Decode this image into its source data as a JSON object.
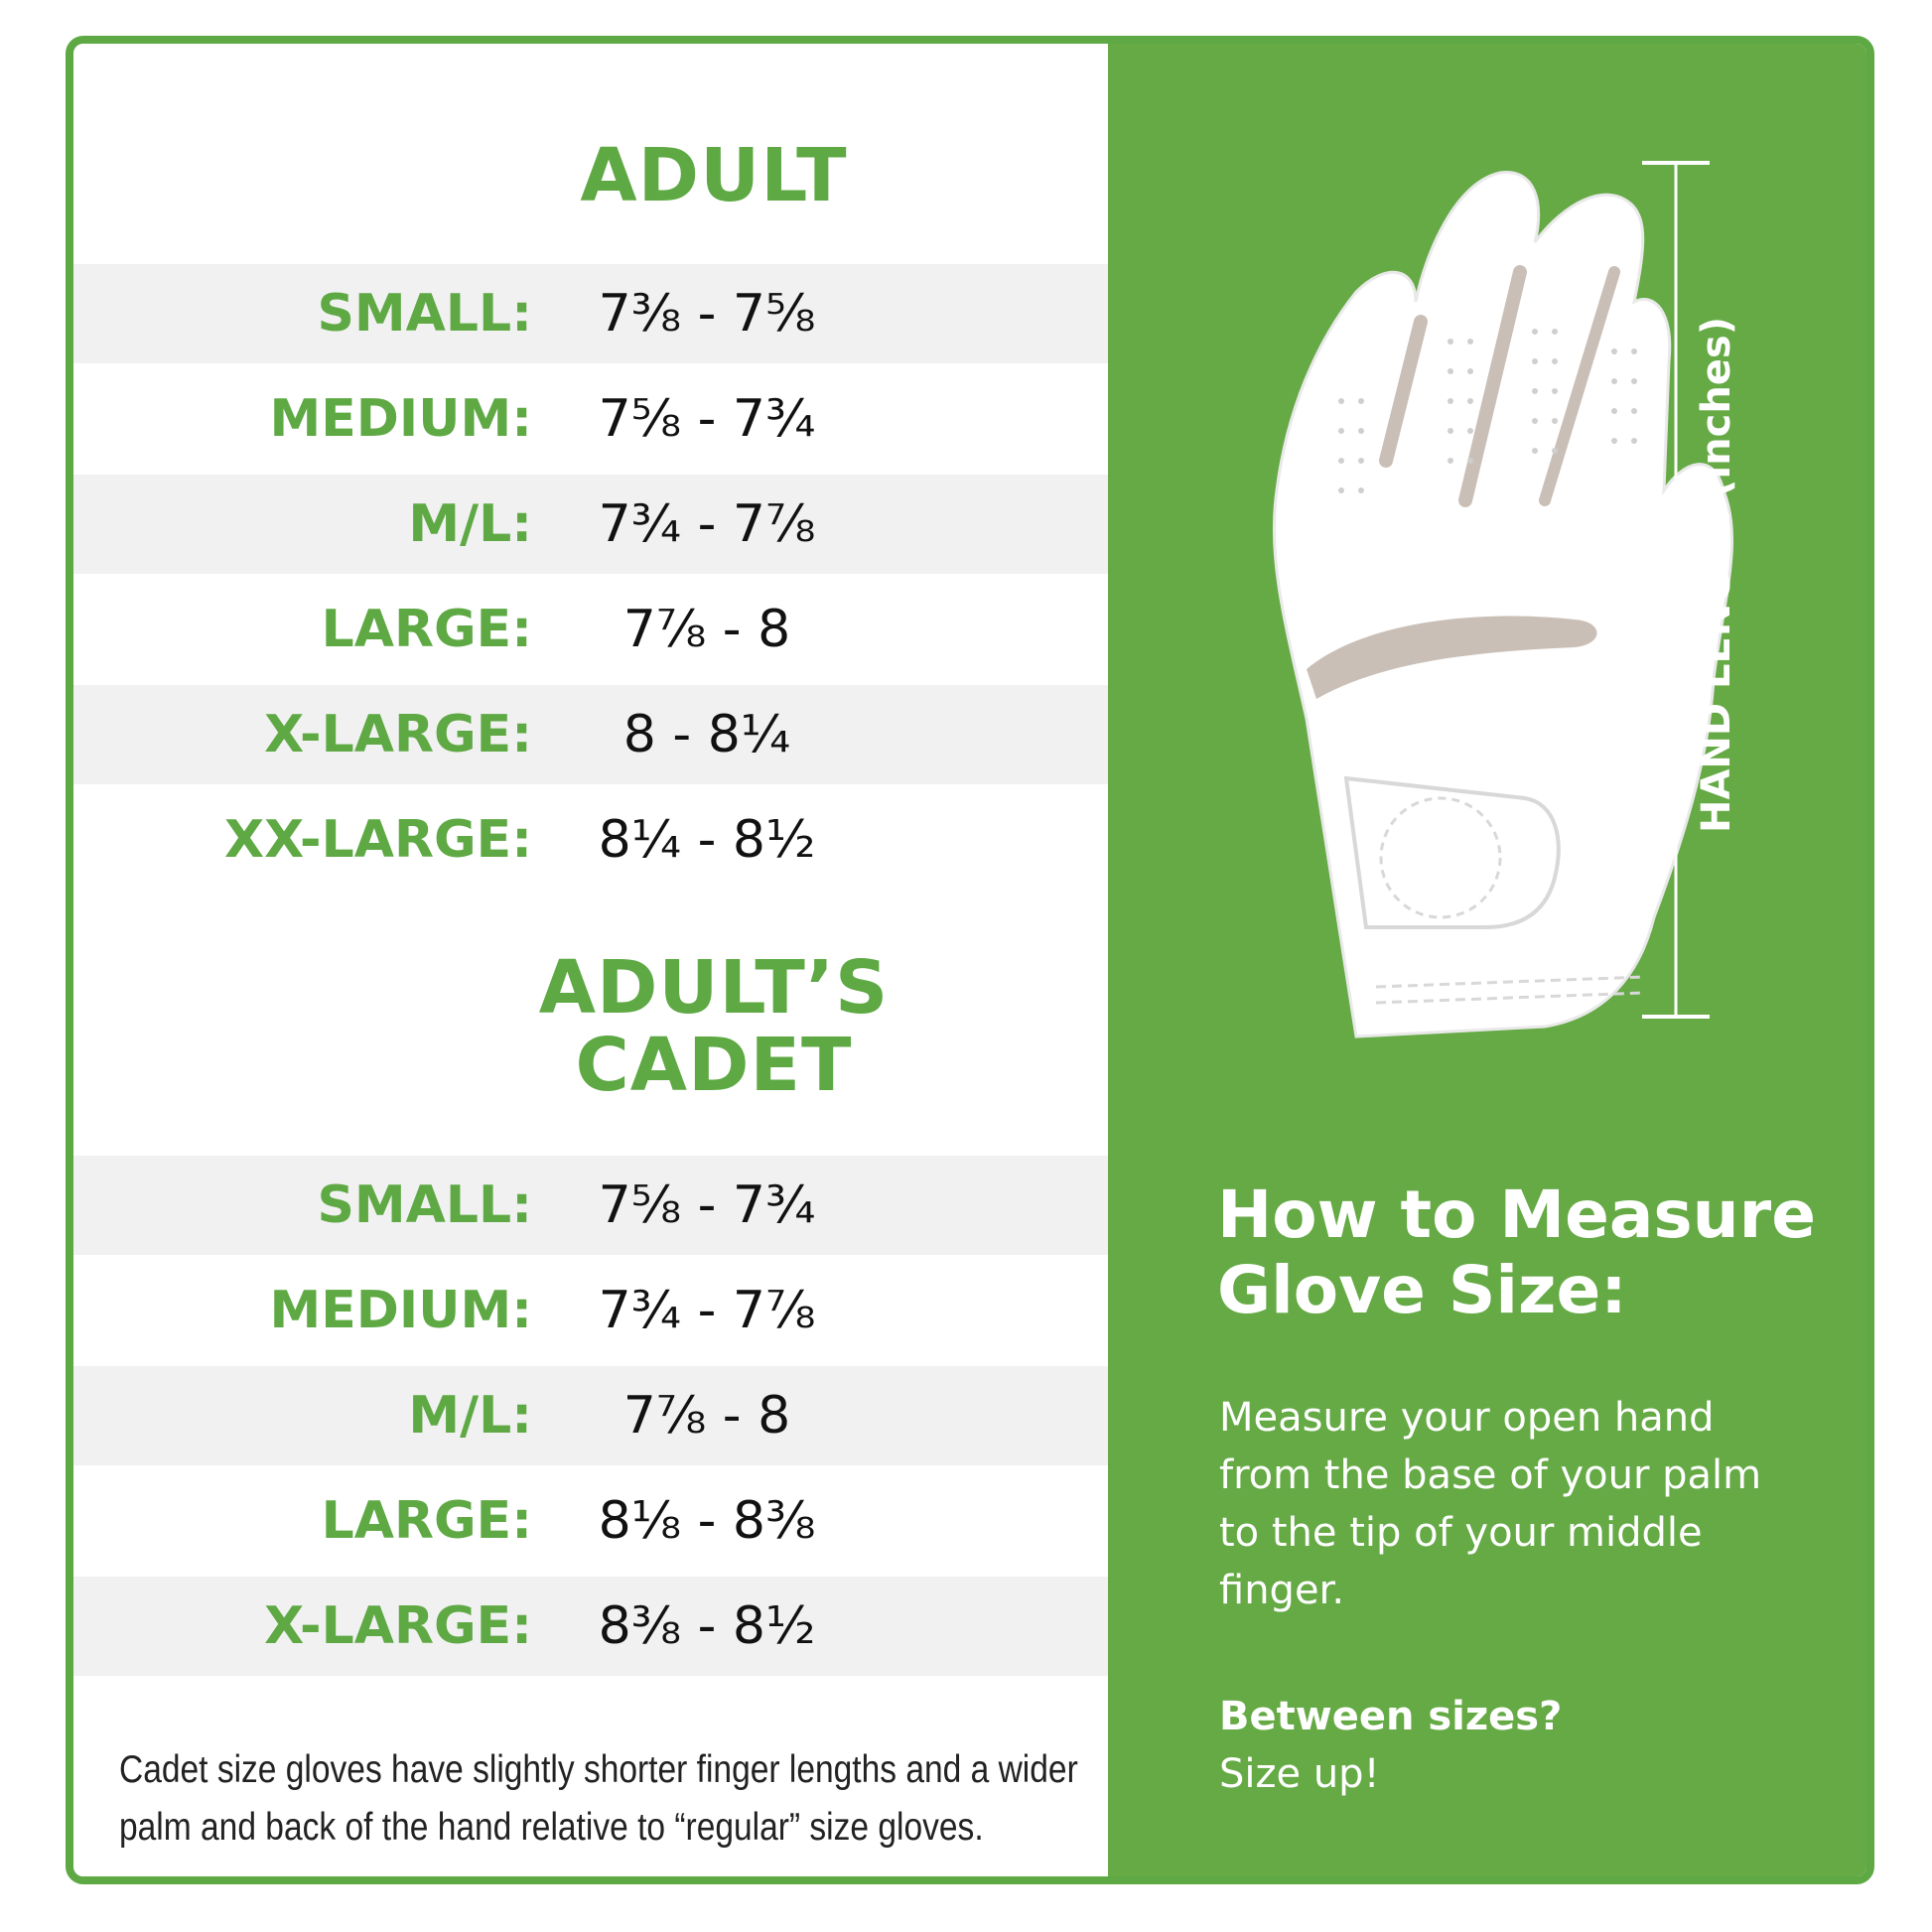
{
  "adult": {
    "title": "ADULT",
    "rows": [
      {
        "label": "SMALL:",
        "range": "7⅜ - 7⅝"
      },
      {
        "label": "MEDIUM:",
        "range": "7⅝ - 7¾"
      },
      {
        "label": "M/L:",
        "range": "7¾ - 7⅞"
      },
      {
        "label": "LARGE:",
        "range": "7⅞ - 8"
      },
      {
        "label": "X-LARGE:",
        "range": "8 - 8¼"
      },
      {
        "label": "XX-LARGE:",
        "range": "8¼ - 8½"
      }
    ]
  },
  "cadet": {
    "title_line1": "ADULT’S",
    "title_line2": "CADET",
    "rows": [
      {
        "label": "SMALL:",
        "range": "7⅝ - 7¾"
      },
      {
        "label": "MEDIUM:",
        "range": "7¾ - 7⅞"
      },
      {
        "label": "M/L:",
        "range": "7⅞ - 8"
      },
      {
        "label": "LARGE:",
        "range": "8⅛ - 8⅜"
      },
      {
        "label": "X-LARGE:",
        "range": "8⅜ - 8½"
      }
    ],
    "note_line1": "Cadet size gloves have slightly shorter finger lengths and a wider",
    "note_line2": "palm and back of the hand relative to “regular” size gloves."
  },
  "guide": {
    "axis_label": "HAND LENGTH (inches)",
    "title_line1": "How to Measure",
    "title_line2": "Glove Size:",
    "description_lines": [
      "Measure your open hand",
      "from the base of your palm",
      "to the tip of your middle",
      "finger."
    ],
    "between_question": "Between sizes?",
    "between_answer": "Size up!"
  },
  "colors": {
    "brand_green": "#5ea944",
    "panel_green": "#65aa45",
    "row_shade": "#f1f1f1"
  },
  "icons": [
    "golf-glove-icon",
    "measurement-bar-icon"
  ]
}
